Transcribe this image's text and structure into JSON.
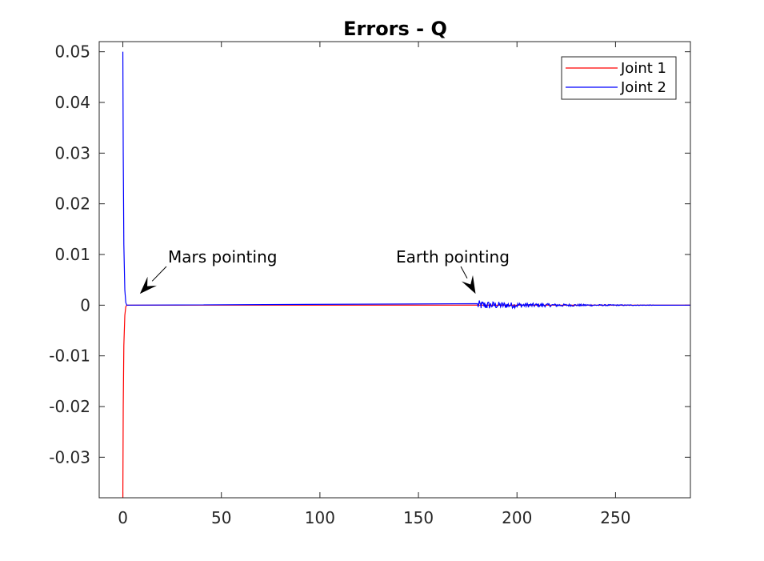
{
  "chart_data": {
    "type": "line",
    "title": "Errors - Q",
    "xlabel": "",
    "ylabel": "",
    "xlim": [
      -12,
      288
    ],
    "ylim": [
      -0.038,
      0.052
    ],
    "xticks": [
      0,
      50,
      100,
      150,
      200,
      250
    ],
    "yticks": [
      -0.03,
      -0.02,
      -0.01,
      0,
      0.01,
      0.02,
      0.03,
      0.04,
      0.05
    ],
    "xtick_labels": [
      "0",
      "50",
      "100",
      "150",
      "200",
      "250"
    ],
    "ytick_labels": [
      "-0.03",
      "-0.02",
      "-0.01",
      "0",
      "0.01",
      "0.02",
      "0.03",
      "0.04",
      "0.05"
    ],
    "grid": false,
    "legend_position": "top-right",
    "colors": {
      "Joint 1": "#ff0000",
      "Joint 2": "#0000ff"
    },
    "series": [
      {
        "name": "Joint 1",
        "color": "#ff0000",
        "x": [
          0,
          0.2,
          0.5,
          1,
          1.5,
          2,
          288
        ],
        "y": [
          -0.038,
          -0.02,
          -0.008,
          -0.002,
          -0.0003,
          0,
          0
        ]
      },
      {
        "name": "Joint 2",
        "color": "#0000ff",
        "x": [
          0,
          0.2,
          0.5,
          1,
          1.5,
          2,
          180,
          288
        ],
        "y": [
          0.05,
          0.03,
          0.012,
          0.003,
          0.0005,
          0,
          0,
          0
        ],
        "noise": {
          "x_start": 180,
          "x_end": 270,
          "amplitude_start": 0.00085,
          "amplitude_end": 0.0001,
          "step": 0.3
        }
      }
    ],
    "annotations": [
      {
        "text": "Mars pointing",
        "target_x": 5,
        "target_y": 0.0002
      },
      {
        "text": "Earth pointing",
        "target_x": 179,
        "target_y": 0.0002
      }
    ]
  }
}
